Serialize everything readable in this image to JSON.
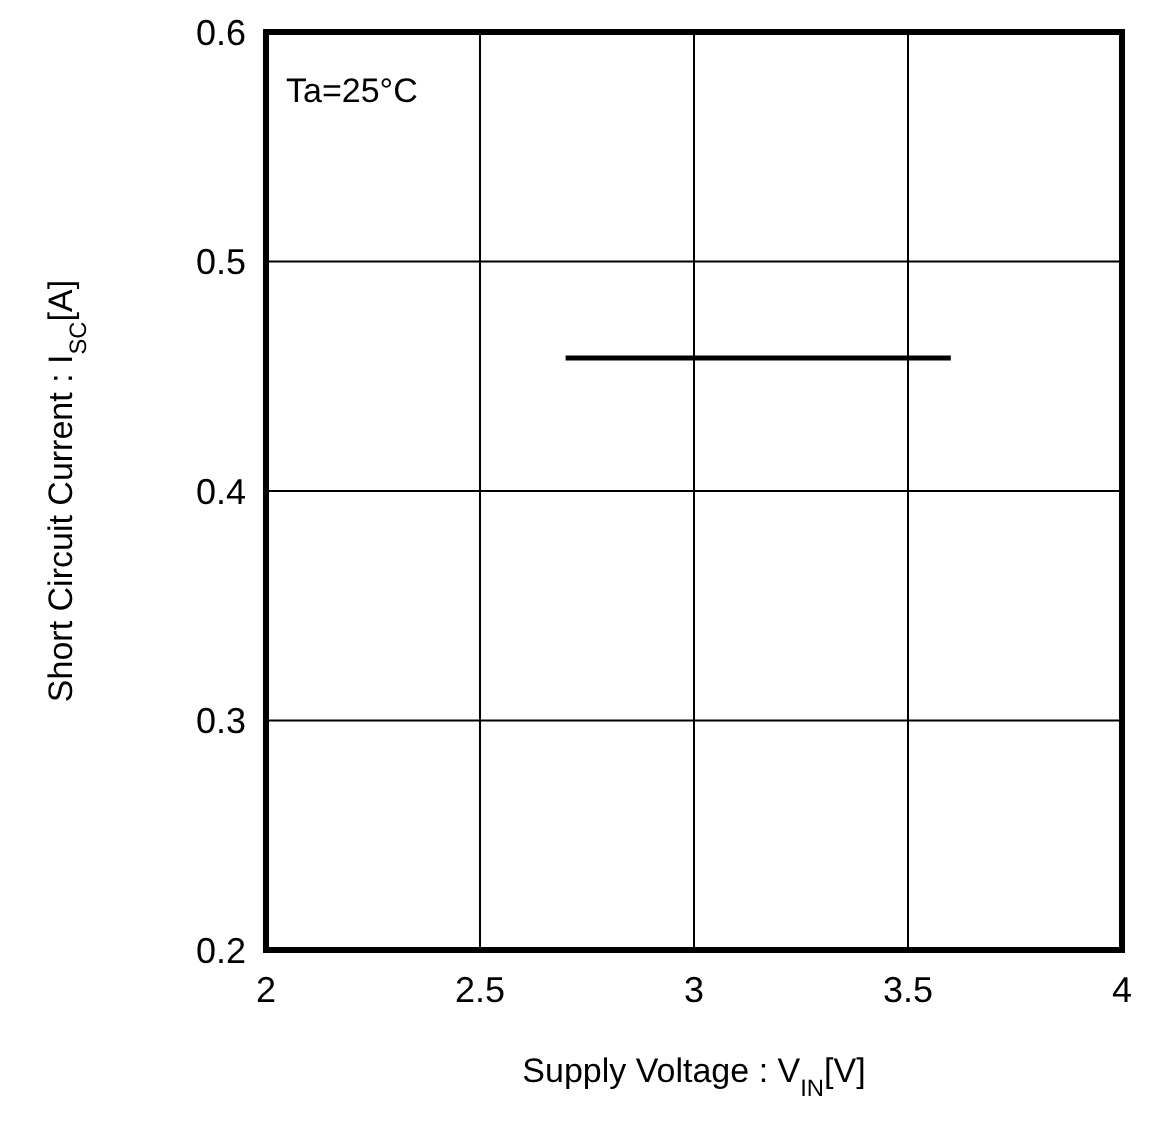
{
  "chart_data": {
    "type": "line",
    "xlabel": "Supply Voltage : V$_{IN}$[V]",
    "ylabel": "Short Circuit Current : I$_{SC}$[A]",
    "annotations": [
      "Ta=25°C"
    ],
    "series": [
      {
        "color": "#000000",
        "x": [
          2.7,
          3.6
        ],
        "values": [
          0.458,
          0.458
        ]
      }
    ],
    "xlim": [
      2,
      4
    ],
    "ylim": [
      0.2,
      0.6
    ],
    "xticks": [
      2,
      2.5,
      3,
      3.5,
      4
    ],
    "yticks": [
      0.2,
      0.3,
      0.4,
      0.5,
      0.6
    ],
    "grid": true,
    "marker": "none",
    "line_style": "solid"
  }
}
